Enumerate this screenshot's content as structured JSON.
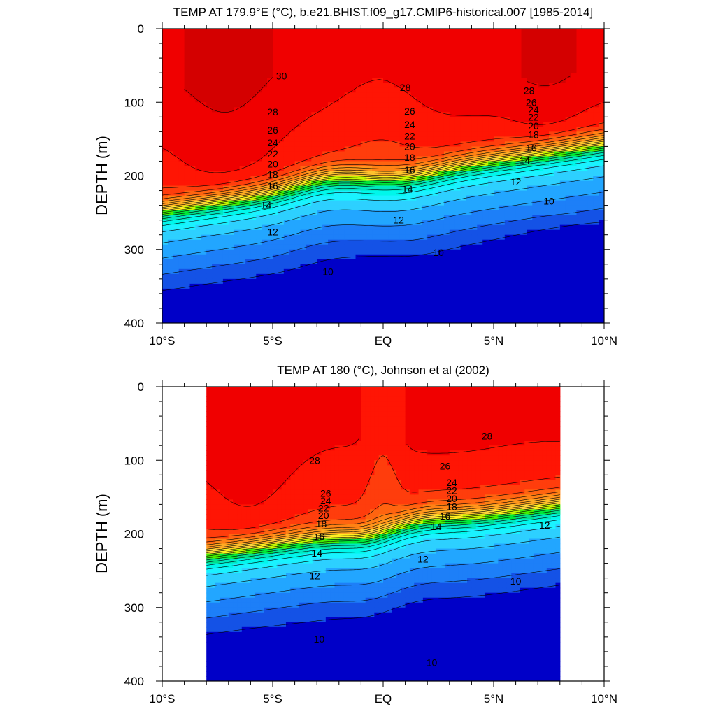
{
  "chart_data": [
    {
      "type": "contour",
      "title": "TEMP AT 179.9°E (°C), b.e21.BHIST.f09_g17.CMIP6-historical.007 [1985-2014]",
      "xlabel": "",
      "ylabel": "DEPTH (m)",
      "xlim": [
        -10,
        10
      ],
      "ylim": [
        400,
        0
      ],
      "data_xrange": [
        -10,
        10
      ],
      "x_ticks": [
        "10°S",
        "5°S",
        "EQ",
        "5°N",
        "10°N"
      ],
      "x_tick_values": [
        -10,
        -5,
        0,
        5,
        10
      ],
      "y_ticks": [
        "0",
        "100",
        "200",
        "300",
        "400"
      ],
      "y_tick_values": [
        0,
        100,
        200,
        300,
        400
      ],
      "level_step": 1,
      "contour_labels": [
        {
          "text": "30",
          "lat": -4.6,
          "depth": 64
        },
        {
          "text": "28",
          "lat": 1.0,
          "depth": 80
        },
        {
          "text": "28",
          "lat": 6.6,
          "depth": 84
        },
        {
          "text": "28",
          "lat": -5.0,
          "depth": 113
        },
        {
          "text": "26",
          "lat": 1.2,
          "depth": 112
        },
        {
          "text": "26",
          "lat": 6.7,
          "depth": 100
        },
        {
          "text": "24",
          "lat": 6.8,
          "depth": 110
        },
        {
          "text": "22",
          "lat": 6.8,
          "depth": 120
        },
        {
          "text": "20",
          "lat": 6.8,
          "depth": 132
        },
        {
          "text": "18",
          "lat": 6.8,
          "depth": 144
        },
        {
          "text": "16",
          "lat": 6.7,
          "depth": 162
        },
        {
          "text": "14",
          "lat": 6.4,
          "depth": 179
        },
        {
          "text": "12",
          "lat": 6.0,
          "depth": 208
        },
        {
          "text": "10",
          "lat": 7.5,
          "depth": 234
        },
        {
          "text": "26",
          "lat": -5.0,
          "depth": 138
        },
        {
          "text": "24",
          "lat": -5.0,
          "depth": 155
        },
        {
          "text": "22",
          "lat": -5.0,
          "depth": 170
        },
        {
          "text": "20",
          "lat": -5.0,
          "depth": 184
        },
        {
          "text": "18",
          "lat": -5.0,
          "depth": 198
        },
        {
          "text": "16",
          "lat": -5.0,
          "depth": 214
        },
        {
          "text": "14",
          "lat": -5.3,
          "depth": 240
        },
        {
          "text": "12",
          "lat": -5.0,
          "depth": 276
        },
        {
          "text": "10",
          "lat": -2.5,
          "depth": 330
        },
        {
          "text": "24",
          "lat": 1.2,
          "depth": 130
        },
        {
          "text": "22",
          "lat": 1.2,
          "depth": 146
        },
        {
          "text": "20",
          "lat": 1.2,
          "depth": 160
        },
        {
          "text": "18",
          "lat": 1.2,
          "depth": 175
        },
        {
          "text": "16",
          "lat": 1.2,
          "depth": 192
        },
        {
          "text": "14",
          "lat": 1.1,
          "depth": 218
        },
        {
          "text": "12",
          "lat": 0.7,
          "depth": 260
        },
        {
          "text": "10",
          "lat": 2.5,
          "depth": 304
        }
      ]
    },
    {
      "type": "contour",
      "title": "TEMP AT 180 (°C), Johnson et al (2002)",
      "xlabel": "",
      "ylabel": "DEPTH (m)",
      "xlim": [
        -10,
        10
      ],
      "ylim": [
        400,
        0
      ],
      "data_xrange": [
        -8,
        8
      ],
      "x_ticks": [
        "10°S",
        "5°S",
        "EQ",
        "5°N",
        "10°N"
      ],
      "x_tick_values": [
        -10,
        -5,
        0,
        5,
        10
      ],
      "y_ticks": [
        "0",
        "100",
        "200",
        "300",
        "400"
      ],
      "y_tick_values": [
        0,
        100,
        200,
        300,
        400
      ],
      "level_step": 1,
      "contour_labels": [
        {
          "text": "28",
          "lat": -3.1,
          "depth": 100
        },
        {
          "text": "28",
          "lat": 4.7,
          "depth": 67
        },
        {
          "text": "26",
          "lat": 2.8,
          "depth": 108
        },
        {
          "text": "26",
          "lat": -2.6,
          "depth": 145
        },
        {
          "text": "24",
          "lat": -2.6,
          "depth": 155
        },
        {
          "text": "22",
          "lat": -2.7,
          "depth": 165
        },
        {
          "text": "20",
          "lat": -2.7,
          "depth": 175
        },
        {
          "text": "18",
          "lat": -2.8,
          "depth": 186
        },
        {
          "text": "24",
          "lat": 3.1,
          "depth": 130
        },
        {
          "text": "22",
          "lat": 3.1,
          "depth": 141
        },
        {
          "text": "20",
          "lat": 3.1,
          "depth": 152
        },
        {
          "text": "18",
          "lat": 3.1,
          "depth": 163
        },
        {
          "text": "16",
          "lat": 2.8,
          "depth": 176
        },
        {
          "text": "14",
          "lat": 2.4,
          "depth": 190
        },
        {
          "text": "16",
          "lat": -2.9,
          "depth": 204
        },
        {
          "text": "14",
          "lat": -3.0,
          "depth": 226
        },
        {
          "text": "12",
          "lat": -3.1,
          "depth": 257
        },
        {
          "text": "12",
          "lat": 1.8,
          "depth": 234
        },
        {
          "text": "12",
          "lat": 7.3,
          "depth": 188
        },
        {
          "text": "10",
          "lat": 6.0,
          "depth": 264
        },
        {
          "text": "10",
          "lat": -2.9,
          "depth": 343
        },
        {
          "text": "10",
          "lat": 2.2,
          "depth": 375
        }
      ]
    }
  ]
}
